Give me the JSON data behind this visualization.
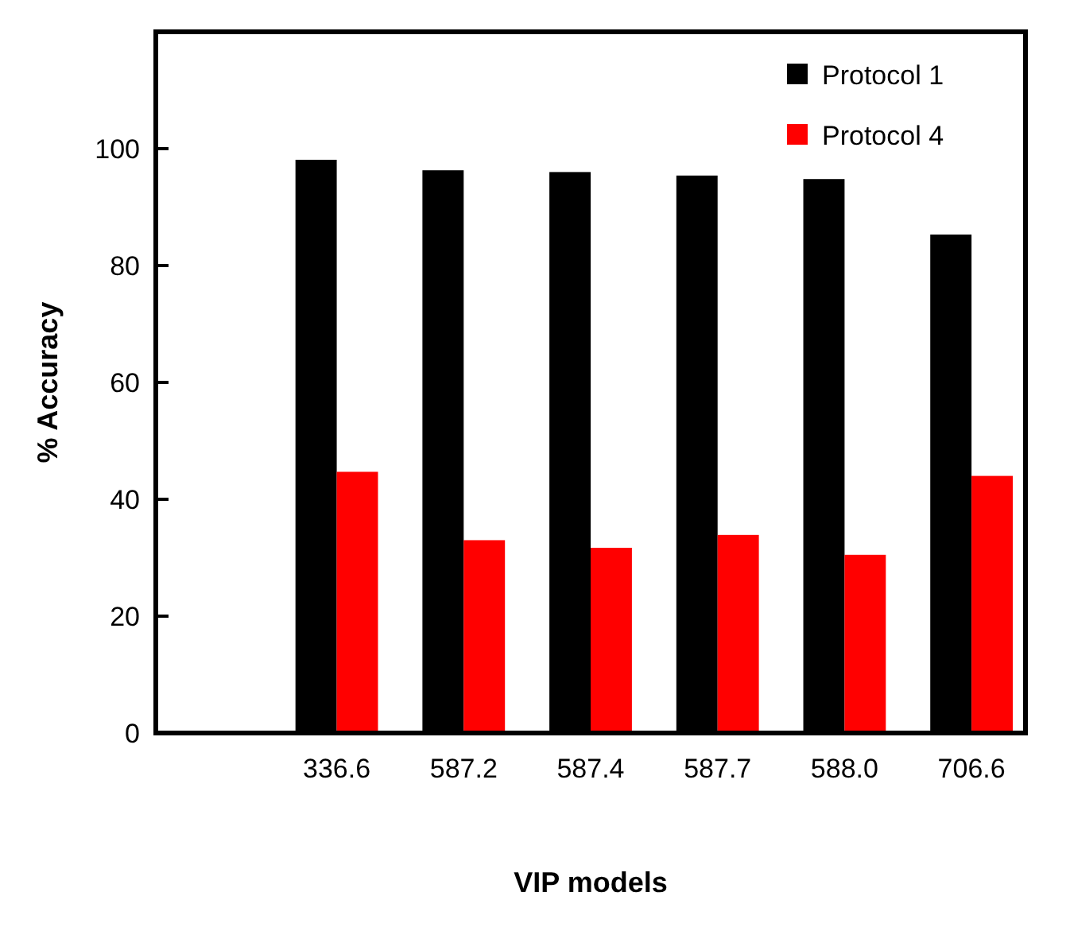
{
  "chart_data": {
    "type": "bar",
    "xlabel": "VIP models",
    "ylabel": "% Accuracy",
    "categories": [
      null,
      "336.6",
      "587.2",
      "587.4",
      "587.7",
      "588.0",
      "706.6"
    ],
    "series": [
      {
        "name": "Protocol 1",
        "color": "#000000",
        "values": [
          null,
          98.1,
          96.3,
          96,
          95.4,
          94.8,
          85.3
        ]
      },
      {
        "name": "Protocol 4",
        "color": "#ff0000",
        "values": [
          null,
          44.7,
          33,
          31.7,
          33.9,
          30.5,
          44
        ]
      }
    ],
    "ylim": [
      0,
      120
    ],
    "yticks": [
      0,
      20,
      40,
      60,
      80,
      100,
      {
        "value": 120,
        "label": null
      }
    ],
    "grid": false,
    "legend": "top right"
  }
}
